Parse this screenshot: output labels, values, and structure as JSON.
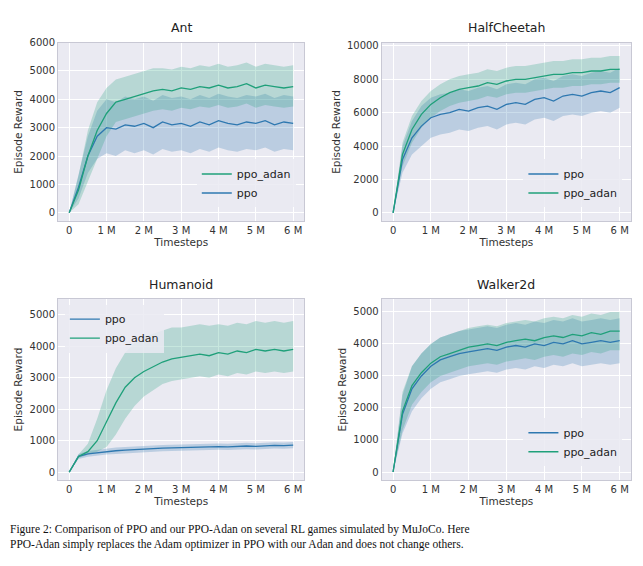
{
  "chart_data": [
    {
      "type": "line",
      "title": "Ant",
      "x_label": "Timesteps",
      "y_label": "Episode Reward",
      "x": [
        0,
        250000,
        500000,
        750000,
        1000000,
        1250000,
        1500000,
        1750000,
        2000000,
        2250000,
        2500000,
        2750000,
        3000000,
        3250000,
        3500000,
        3750000,
        4000000,
        4250000,
        4500000,
        4750000,
        5000000,
        5250000,
        5500000,
        5750000,
        6000000
      ],
      "xlim": [
        -300000,
        6300000
      ],
      "xticks": [
        0,
        {
          "value": 1000000,
          "label": "1 M"
        },
        {
          "value": 2000000,
          "label": "2 M"
        },
        {
          "value": 3000000,
          "label": "3 M"
        },
        {
          "value": 4000000,
          "label": "4 M"
        },
        {
          "value": 5000000,
          "label": "5 M"
        },
        {
          "value": 6000000,
          "label": "6 M"
        }
      ],
      "ylim": [
        -300,
        6000
      ],
      "yticks": [
        0,
        1000,
        2000,
        3000,
        4000,
        5000,
        6000
      ],
      "grid": true,
      "legend": "lower right",
      "series": [
        {
          "name": "ppo",
          "color": "#2e78b0",
          "values": [
            0,
            900,
            2000,
            2700,
            3000,
            2950,
            3100,
            3050,
            3150,
            3000,
            3200,
            3100,
            3150,
            3050,
            3200,
            3100,
            3250,
            3150,
            3100,
            3200,
            3150,
            3250,
            3100,
            3200,
            3150
          ],
          "lower": [
            0,
            500,
            1400,
            1900,
            2100,
            2000,
            2200,
            2100,
            2200,
            2050,
            2250,
            2150,
            2200,
            2100,
            2250,
            2150,
            2300,
            2200,
            2150,
            2250,
            2200,
            2300,
            2150,
            2250,
            2200
          ],
          "upper": [
            0,
            1300,
            2700,
            3600,
            4000,
            3900,
            4100,
            4000,
            4100,
            3950,
            4150,
            4050,
            4100,
            4000,
            4150,
            4050,
            4200,
            4100,
            4050,
            4150,
            4100,
            4200,
            4050,
            4150,
            4100
          ]
        },
        {
          "name": "ppo_adan",
          "color": "#1fa07a",
          "values": [
            0,
            800,
            2000,
            2900,
            3500,
            3900,
            4000,
            4100,
            4200,
            4300,
            4350,
            4300,
            4400,
            4350,
            4450,
            4400,
            4500,
            4400,
            4450,
            4550,
            4400,
            4500,
            4450,
            4400,
            4450
          ],
          "lower": [
            0,
            300,
            1100,
            1900,
            2700,
            3200,
            3300,
            3400,
            3500,
            3600,
            3650,
            3600,
            3700,
            3650,
            3750,
            3700,
            3800,
            3700,
            3750,
            3850,
            3700,
            3800,
            3750,
            3700,
            3750
          ],
          "upper": [
            0,
            1300,
            2900,
            3900,
            4400,
            4700,
            4800,
            4900,
            5000,
            5100,
            5100,
            5050,
            5150,
            5100,
            5200,
            5150,
            5250,
            5150,
            5200,
            5300,
            5150,
            5250,
            5200,
            5150,
            5200
          ]
        }
      ]
    },
    {
      "type": "line",
      "title": "HalfCheetah",
      "x_label": "Timesteps",
      "y_label": "Episode Reward",
      "x": [
        0,
        250000,
        500000,
        750000,
        1000000,
        1250000,
        1500000,
        1750000,
        2000000,
        2250000,
        2500000,
        2750000,
        3000000,
        3250000,
        3500000,
        3750000,
        4000000,
        4250000,
        4500000,
        4750000,
        5000000,
        5250000,
        5500000,
        5750000,
        6000000
      ],
      "xlim": [
        -300000,
        6300000
      ],
      "xticks": [
        0,
        {
          "value": 1000000,
          "label": "1 M"
        },
        {
          "value": 2000000,
          "label": "2 M"
        },
        {
          "value": 3000000,
          "label": "3 M"
        },
        {
          "value": 4000000,
          "label": "4 M"
        },
        {
          "value": 5000000,
          "label": "5 M"
        },
        {
          "value": 6000000,
          "label": "6 M"
        }
      ],
      "ylim": [
        -500,
        10200
      ],
      "yticks": [
        0,
        2000,
        4000,
        6000,
        8000,
        10000
      ],
      "grid": true,
      "legend": "lower right",
      "series": [
        {
          "name": "ppo",
          "color": "#2e78b0",
          "values": [
            0,
            3200,
            4500,
            5200,
            5700,
            5900,
            6000,
            6200,
            6100,
            6300,
            6400,
            6200,
            6500,
            6600,
            6500,
            6800,
            6900,
            6700,
            7000,
            7100,
            7000,
            7200,
            7300,
            7200,
            7500
          ],
          "lower": [
            0,
            2400,
            3500,
            4000,
            4500,
            4700,
            4800,
            5000,
            4900,
            5100,
            5200,
            5000,
            5300,
            5400,
            5300,
            5600,
            5700,
            5500,
            5800,
            5900,
            5800,
            6000,
            6100,
            6000,
            6300
          ],
          "upper": [
            0,
            4000,
            5500,
            6400,
            6900,
            7100,
            7200,
            7400,
            7300,
            7500,
            7600,
            7400,
            7700,
            7800,
            7700,
            8000,
            8100,
            7900,
            8200,
            8300,
            8200,
            8400,
            8500,
            8400,
            8700
          ]
        },
        {
          "name": "ppo_adan",
          "color": "#1fa07a",
          "values": [
            0,
            3500,
            5000,
            5900,
            6500,
            6900,
            7200,
            7400,
            7500,
            7600,
            7800,
            7700,
            7900,
            8000,
            8000,
            8100,
            8200,
            8300,
            8300,
            8400,
            8400,
            8500,
            8500,
            8600,
            8600
          ],
          "lower": [
            0,
            2800,
            4200,
            5100,
            5700,
            6100,
            6400,
            6600,
            6700,
            6800,
            7000,
            6900,
            7100,
            7200,
            7200,
            7300,
            7400,
            7500,
            7500,
            7600,
            7600,
            7700,
            7700,
            7800,
            7800
          ],
          "upper": [
            0,
            4200,
            5800,
            6700,
            7300,
            7700,
            8000,
            8200,
            8300,
            8400,
            8600,
            8500,
            8700,
            8800,
            8800,
            8900,
            9000,
            9100,
            9100,
            9200,
            9200,
            9300,
            9300,
            9400,
            9400
          ]
        }
      ]
    },
    {
      "type": "line",
      "title": "Humanoid",
      "x_label": "Timesteps",
      "y_label": "Episode Reward",
      "x": [
        0,
        250000,
        500000,
        750000,
        1000000,
        1250000,
        1500000,
        1750000,
        2000000,
        2250000,
        2500000,
        2750000,
        3000000,
        3250000,
        3500000,
        3750000,
        4000000,
        4250000,
        4500000,
        4750000,
        5000000,
        5250000,
        5500000,
        5750000,
        6000000
      ],
      "xlim": [
        -300000,
        6300000
      ],
      "xticks": [
        0,
        {
          "value": 1000000,
          "label": "1 M"
        },
        {
          "value": 2000000,
          "label": "2 M"
        },
        {
          "value": 3000000,
          "label": "3 M"
        },
        {
          "value": 4000000,
          "label": "4 M"
        },
        {
          "value": 5000000,
          "label": "5 M"
        },
        {
          "value": 6000000,
          "label": "6 M"
        }
      ],
      "ylim": [
        -250,
        5500
      ],
      "yticks": [
        0,
        1000,
        2000,
        3000,
        4000,
        5000
      ],
      "grid": true,
      "legend": "upper left",
      "series": [
        {
          "name": "ppo",
          "color": "#2e78b0",
          "values": [
            0,
            500,
            580,
            620,
            650,
            680,
            700,
            720,
            740,
            750,
            760,
            770,
            780,
            790,
            790,
            800,
            810,
            800,
            820,
            830,
            820,
            840,
            850,
            840,
            860
          ],
          "lower": [
            0,
            420,
            490,
            530,
            560,
            580,
            600,
            620,
            640,
            650,
            660,
            670,
            680,
            690,
            690,
            700,
            710,
            700,
            720,
            730,
            720,
            740,
            750,
            740,
            760
          ],
          "upper": [
            0,
            580,
            670,
            710,
            740,
            780,
            800,
            820,
            840,
            850,
            860,
            870,
            880,
            890,
            890,
            900,
            910,
            900,
            920,
            930,
            920,
            940,
            950,
            940,
            960
          ]
        },
        {
          "name": "ppo_adan",
          "color": "#1fa07a",
          "values": [
            0,
            500,
            650,
            1000,
            1600,
            2200,
            2700,
            3000,
            3200,
            3350,
            3500,
            3600,
            3650,
            3700,
            3750,
            3700,
            3800,
            3750,
            3850,
            3800,
            3900,
            3850,
            3900,
            3850,
            3900
          ],
          "lower": [
            0,
            450,
            550,
            650,
            800,
            1200,
            1700,
            2100,
            2400,
            2600,
            2800,
            2900,
            2950,
            3000,
            3050,
            3000,
            3100,
            3050,
            3150,
            3100,
            3200,
            3150,
            3200,
            3150,
            3200
          ],
          "upper": [
            0,
            560,
            900,
            1700,
            2600,
            3300,
            3800,
            4100,
            4300,
            4400,
            4500,
            4600,
            4600,
            4650,
            4700,
            4650,
            4700,
            4650,
            4750,
            4700,
            4800,
            4750,
            4800,
            4750,
            4800
          ]
        }
      ]
    },
    {
      "type": "line",
      "title": "Walker2d",
      "x_label": "Timesteps",
      "y_label": "Episode Reward",
      "x": [
        0,
        250000,
        500000,
        750000,
        1000000,
        1250000,
        1500000,
        1750000,
        2000000,
        2250000,
        2500000,
        2750000,
        3000000,
        3250000,
        3500000,
        3750000,
        4000000,
        4250000,
        4500000,
        4750000,
        5000000,
        5250000,
        5500000,
        5750000,
        6000000
      ],
      "xlim": [
        -300000,
        6300000
      ],
      "xticks": [
        0,
        {
          "value": 1000000,
          "label": "1 M"
        },
        {
          "value": 2000000,
          "label": "2 M"
        },
        {
          "value": 3000000,
          "label": "3 M"
        },
        {
          "value": 4000000,
          "label": "4 M"
        },
        {
          "value": 5000000,
          "label": "5 M"
        },
        {
          "value": 6000000,
          "label": "6 M"
        }
      ],
      "ylim": [
        -250,
        5400
      ],
      "yticks": [
        0,
        1000,
        2000,
        3000,
        4000,
        5000
      ],
      "grid": true,
      "legend": "lower right",
      "series": [
        {
          "name": "ppo",
          "color": "#2e78b0",
          "values": [
            0,
            1800,
            2600,
            3000,
            3300,
            3500,
            3600,
            3700,
            3750,
            3800,
            3850,
            3800,
            3900,
            3950,
            3900,
            4000,
            3950,
            4050,
            4000,
            4100,
            4000,
            4050,
            4100,
            4050,
            4100
          ],
          "lower": [
            0,
            1200,
            1900,
            2300,
            2600,
            2800,
            2900,
            3000,
            3050,
            3100,
            3150,
            3100,
            3200,
            3250,
            3200,
            3300,
            3250,
            3350,
            3300,
            3400,
            3300,
            3350,
            3400,
            3350,
            3400
          ],
          "upper": [
            0,
            2400,
            3300,
            3700,
            4000,
            4200,
            4300,
            4400,
            4450,
            4500,
            4550,
            4500,
            4600,
            4650,
            4600,
            4700,
            4650,
            4750,
            4700,
            4800,
            4700,
            4750,
            4800,
            4750,
            4800
          ]
        },
        {
          "name": "ppo_adan",
          "color": "#1fa07a",
          "values": [
            0,
            1900,
            2700,
            3100,
            3400,
            3600,
            3700,
            3800,
            3900,
            3950,
            4000,
            3950,
            4050,
            4100,
            4150,
            4100,
            4200,
            4250,
            4200,
            4300,
            4250,
            4350,
            4300,
            4400,
            4400
          ],
          "lower": [
            0,
            1300,
            2100,
            2500,
            2800,
            3000,
            3100,
            3200,
            3300,
            3350,
            3400,
            3350,
            3450,
            3500,
            3550,
            3500,
            3600,
            3650,
            3600,
            3700,
            3650,
            3750,
            3700,
            3800,
            3800
          ],
          "upper": [
            0,
            2500,
            3300,
            3700,
            4000,
            4200,
            4300,
            4400,
            4500,
            4550,
            4600,
            4550,
            4650,
            4700,
            4750,
            4700,
            4800,
            4850,
            4800,
            4900,
            4850,
            4950,
            4900,
            5000,
            5000
          ]
        }
      ]
    }
  ],
  "caption": [
    "Figure 2: Comparison of PPO and our PPO-Adan on several RL games simulated by MuJoCo. Here",
    "PPO-Adan simply replaces the Adam optimizer in PPO with our Adan and does not change others."
  ]
}
